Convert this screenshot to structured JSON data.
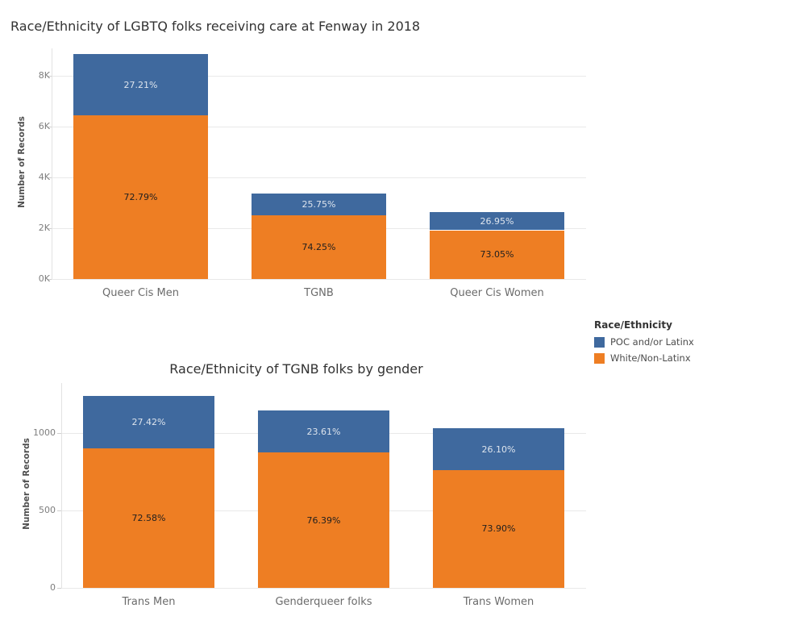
{
  "background": "#ffffff",
  "colors": {
    "poc_blue": "#3f699e",
    "white_orange": "#ee7e23",
    "label_on_blue": "#dde4ed",
    "label_on_orange": "#1f1f1f"
  },
  "legend": {
    "title": "Race/Ethnicity",
    "items": [
      {
        "label": "POC and/or Latinx",
        "color": "#3f699e",
        "icon": "legend-swatch-blue"
      },
      {
        "label": "White/Non-Latinx",
        "color": "#ee7e23",
        "icon": "legend-swatch-orange"
      }
    ]
  },
  "chart_data": [
    {
      "type": "bar",
      "stacked": true,
      "title": "Race/Ethnicity of LGBTQ folks receiving care at Fenway in 2018",
      "xlabel": "",
      "ylabel": "Number of Records",
      "categories": [
        "Queer Cis Men",
        "TGNB",
        "Queer Cis Women"
      ],
      "series": [
        {
          "name": "White/Non-Latinx",
          "color": "#ee7e23",
          "values": [
            6442,
            2502,
            1921
          ],
          "percent_labels": [
            "72.79%",
            "74.25%",
            "73.05%"
          ],
          "label_color": "#1f1f1f"
        },
        {
          "name": "POC and/or Latinx",
          "color": "#3f699e",
          "values": [
            2408,
            868,
            709
          ],
          "percent_labels": [
            "27.21%",
            "25.75%",
            "26.95%"
          ],
          "label_color": "#dde4ed"
        }
      ],
      "approx_totals": [
        8850,
        3370,
        2630
      ],
      "yticks": {
        "values": [
          0,
          2000,
          4000,
          6000,
          8000
        ],
        "labels": [
          "0K",
          "2K",
          "4K",
          "6K",
          "8K"
        ]
      },
      "ylim": [
        0,
        9080
      ],
      "grid": true,
      "legend_position": "right-middle"
    },
    {
      "type": "bar",
      "stacked": true,
      "title": "Race/Ethnicity of TGNB folks by gender",
      "xlabel": "",
      "ylabel": "Number of Records",
      "categories": [
        "Trans Men",
        "Genderqueer folks",
        "Trans Women"
      ],
      "series": [
        {
          "name": "White/Non-Latinx",
          "color": "#ee7e23",
          "values": [
            900,
            875,
            761
          ],
          "percent_labels": [
            "72.58%",
            "76.39%",
            "73.90%"
          ],
          "label_color": "#1f1f1f"
        },
        {
          "name": "POC and/or Latinx",
          "color": "#3f699e",
          "values": [
            340,
            270,
            269
          ],
          "percent_labels": [
            "27.42%",
            "23.61%",
            "26.10%"
          ],
          "label_color": "#dde4ed"
        }
      ],
      "approx_totals": [
        1240,
        1145,
        1030
      ],
      "yticks": {
        "values": [
          0,
          500,
          1000
        ],
        "labels": [
          "0",
          "500",
          "1000"
        ]
      },
      "ylim": [
        0,
        1323
      ],
      "grid": true,
      "legend_position": "shared"
    }
  ]
}
